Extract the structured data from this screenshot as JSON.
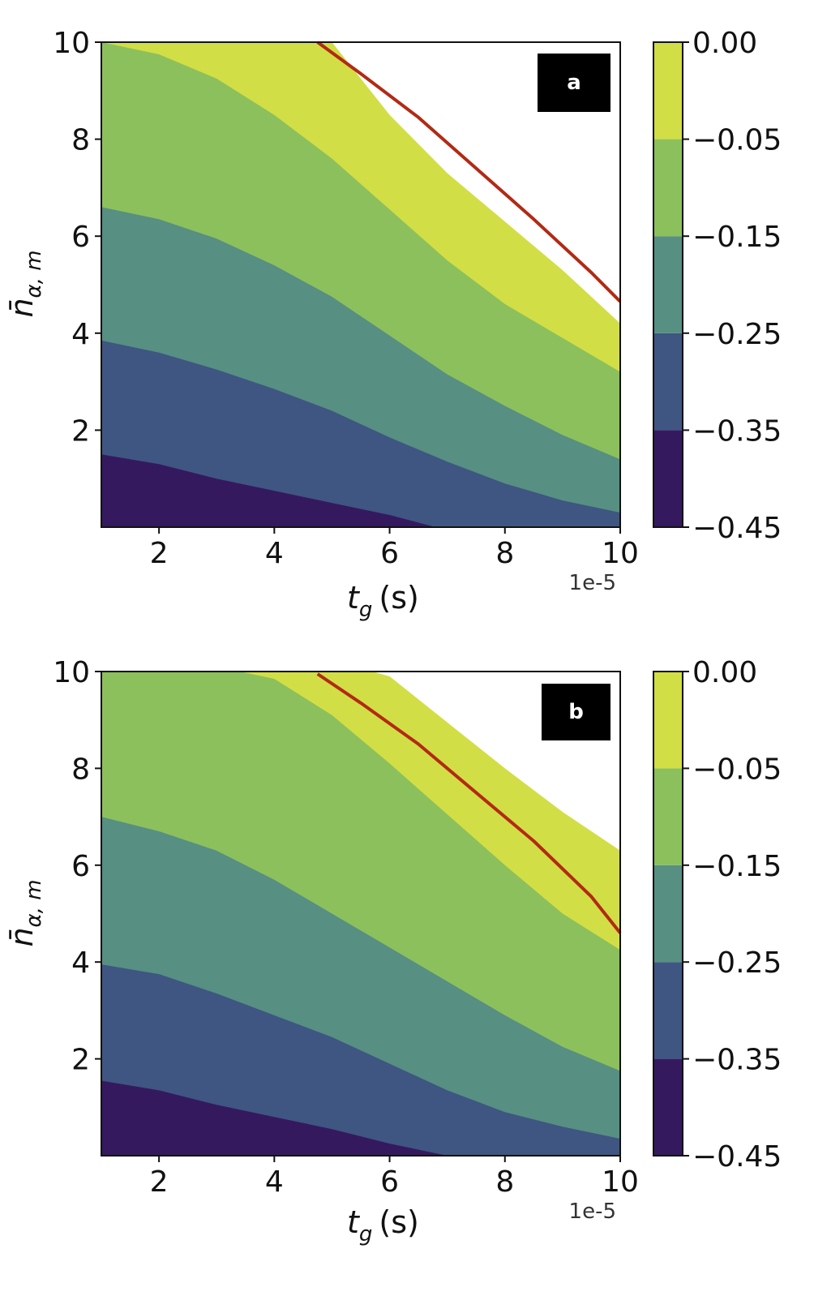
{
  "chart_data": [
    {
      "type": "contourf",
      "panel_label": "a",
      "xlabel": "t",
      "xlabel_subscript": "g",
      "xlabel_unit": "(s)",
      "ylabel": "n̄",
      "ylabel_subscript": "α, m",
      "x_offset_label": "1e-5",
      "xlim": [
        1,
        10
      ],
      "ylim": [
        0,
        10
      ],
      "xticks": [
        2,
        4,
        6,
        8,
        10
      ],
      "yticks": [
        2,
        4,
        6,
        8,
        10
      ],
      "colorbar": {
        "levels": [
          -0.45,
          -0.35,
          -0.25,
          -0.15,
          -0.05,
          0.0
        ],
        "tick_labels": [
          "0.00",
          "−0.05",
          "−0.15",
          "−0.25",
          "−0.35",
          "−0.45"
        ],
        "colors": [
          "#35195f",
          "#3e5681",
          "#578f82",
          "#8cc05c",
          "#d2de45"
        ]
      },
      "boundaries": [
        {
          "level": -0.35,
          "x": [
            1,
            2,
            3,
            4,
            5,
            6,
            6.8
          ],
          "y": [
            1.5,
            1.3,
            1.0,
            0.75,
            0.5,
            0.25,
            0.0
          ]
        },
        {
          "level": -0.25,
          "x": [
            1,
            2,
            3,
            4,
            5,
            6,
            7,
            8,
            9,
            10
          ],
          "y": [
            3.85,
            3.6,
            3.25,
            2.85,
            2.4,
            1.85,
            1.35,
            0.9,
            0.55,
            0.3
          ]
        },
        {
          "level": -0.15,
          "x": [
            1,
            2,
            3,
            4,
            5,
            6,
            7,
            8,
            9,
            10
          ],
          "y": [
            6.6,
            6.35,
            5.95,
            5.4,
            4.75,
            3.95,
            3.15,
            2.5,
            1.9,
            1.4
          ]
        },
        {
          "level": -0.05,
          "x": [
            1,
            2,
            3,
            4,
            5,
            6,
            7,
            8,
            9,
            10
          ],
          "y": [
            10.0,
            9.75,
            9.25,
            8.5,
            7.6,
            6.55,
            5.5,
            4.6,
            3.9,
            3.2
          ]
        },
        {
          "level": 0.0,
          "x": [
            3.0,
            4,
            5,
            6,
            7,
            8,
            9,
            10
          ],
          "y": [
            10.0,
            10.0,
            10.0,
            8.5,
            7.3,
            6.3,
            5.3,
            4.2
          ]
        }
      ],
      "red_line": {
        "x": [
          4.75,
          5.5,
          6.5,
          7.5,
          8.5,
          9.5,
          10
        ],
        "y": [
          10.0,
          9.35,
          8.45,
          7.4,
          6.35,
          5.25,
          4.65
        ]
      }
    },
    {
      "type": "contourf",
      "panel_label": "b",
      "xlabel": "t",
      "xlabel_subscript": "g",
      "xlabel_unit": "(s)",
      "ylabel": "n̄",
      "ylabel_subscript": "α, m",
      "x_offset_label": "1e-5",
      "xlim": [
        1,
        10
      ],
      "ylim": [
        0,
        10
      ],
      "xticks": [
        2,
        4,
        6,
        8,
        10
      ],
      "yticks": [
        2,
        4,
        6,
        8,
        10
      ],
      "colorbar": {
        "levels": [
          -0.45,
          -0.35,
          -0.25,
          -0.15,
          -0.05,
          0.0
        ],
        "tick_labels": [
          "0.00",
          "−0.05",
          "−0.15",
          "−0.25",
          "−0.35",
          "−0.45"
        ],
        "colors": [
          "#35195f",
          "#3e5681",
          "#578f82",
          "#8cc05c",
          "#d2de45"
        ]
      },
      "boundaries": [
        {
          "level": -0.35,
          "x": [
            1,
            2,
            3,
            4,
            5,
            6,
            7.0
          ],
          "y": [
            1.55,
            1.35,
            1.05,
            0.8,
            0.55,
            0.25,
            0.0
          ]
        },
        {
          "level": -0.25,
          "x": [
            1,
            2,
            3,
            4,
            5,
            6,
            7,
            8,
            9,
            10
          ],
          "y": [
            3.95,
            3.75,
            3.35,
            2.9,
            2.45,
            1.9,
            1.35,
            0.9,
            0.6,
            0.35
          ]
        },
        {
          "level": -0.15,
          "x": [
            1,
            2,
            3,
            4,
            5,
            6,
            7,
            8,
            9,
            10
          ],
          "y": [
            7.0,
            6.7,
            6.3,
            5.7,
            5.0,
            4.3,
            3.6,
            2.9,
            2.25,
            1.75
          ]
        },
        {
          "level": -0.05,
          "x": [
            3.4,
            4,
            5,
            6,
            7,
            8,
            9,
            10
          ],
          "y": [
            10.0,
            9.85,
            9.1,
            8.1,
            7.05,
            6.0,
            5.0,
            4.25
          ]
        },
        {
          "level": 0.0,
          "x": [
            5.7,
            6,
            7,
            8,
            9,
            10
          ],
          "y": [
            10.0,
            9.9,
            8.95,
            8.0,
            7.1,
            6.3
          ]
        }
      ],
      "red_line": {
        "x": [
          4.75,
          5.5,
          6.5,
          7.5,
          8.5,
          9.5,
          10
        ],
        "y": [
          9.95,
          9.35,
          8.5,
          7.5,
          6.5,
          5.35,
          4.6
        ]
      }
    }
  ]
}
